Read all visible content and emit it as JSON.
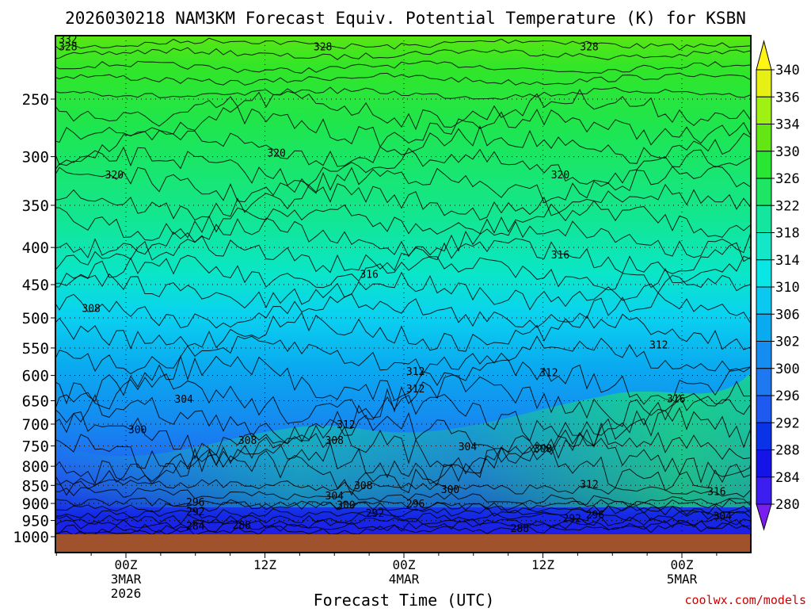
{
  "chart_data": {
    "type": "heatmap",
    "title": "2026030218 NAM3KM Forecast Equiv. Potential Temperature (K) for KSBN",
    "xlabel": "Forecast Time (UTC)",
    "ylabel": "",
    "credit": "coolwx.com/models",
    "x_ticks": [
      {
        "time_h": 6,
        "lines": [
          "00Z",
          "3MAR",
          "2026"
        ]
      },
      {
        "time_h": 18,
        "lines": [
          "12Z"
        ]
      },
      {
        "time_h": 30,
        "lines": [
          "00Z",
          "4MAR"
        ]
      },
      {
        "time_h": 42,
        "lines": [
          "12Z"
        ]
      },
      {
        "time_h": 54,
        "lines": [
          "00Z",
          "5MAR"
        ]
      }
    ],
    "xlim_hours": [
      0,
      60
    ],
    "y_ticks": [
      250,
      300,
      350,
      400,
      450,
      500,
      550,
      600,
      650,
      700,
      750,
      800,
      850,
      900,
      950,
      1000
    ],
    "ylim_hpa": [
      1000,
      200
    ],
    "y_scale": "log",
    "colorbar_levels": [
      280,
      284,
      288,
      292,
      296,
      300,
      302,
      306,
      310,
      314,
      318,
      322,
      326,
      330,
      334,
      336,
      340
    ],
    "colorbar_colors": [
      "#7a1ef0",
      "#3c1ef0",
      "#1414e6",
      "#0a32e6",
      "#1e5af0",
      "#1e78f0",
      "#148cf0",
      "#0aaaf0",
      "#0ac8f0",
      "#0ae6e6",
      "#14e6c8",
      "#14e6a0",
      "#1ee664",
      "#28e632",
      "#64e614",
      "#a0f014",
      "#e6f014",
      "#fff514"
    ],
    "ground_color": "#a0522d",
    "contour_labels": [
      {
        "text": "332",
        "t": 1.0,
        "p": 207
      },
      {
        "text": "328",
        "t": 1.0,
        "p": 212
      },
      {
        "text": "328",
        "t": 23.0,
        "p": 212
      },
      {
        "text": "328",
        "t": 46.0,
        "p": 212
      },
      {
        "text": "320",
        "t": 5.0,
        "p": 318
      },
      {
        "text": "320",
        "t": 19.0,
        "p": 297
      },
      {
        "text": "320",
        "t": 43.5,
        "p": 318
      },
      {
        "text": "316",
        "t": 27.0,
        "p": 436
      },
      {
        "text": "316",
        "t": 43.5,
        "p": 410
      },
      {
        "text": "308",
        "t": 3.0,
        "p": 486
      },
      {
        "text": "312",
        "t": 31.0,
        "p": 593
      },
      {
        "text": "312",
        "t": 31.0,
        "p": 627
      },
      {
        "text": "312",
        "t": 42.5,
        "p": 595
      },
      {
        "text": "312",
        "t": 52.0,
        "p": 545
      },
      {
        "text": "304",
        "t": 11.0,
        "p": 648
      },
      {
        "text": "316",
        "t": 53.5,
        "p": 647
      },
      {
        "text": "312",
        "t": 25.0,
        "p": 702
      },
      {
        "text": "300",
        "t": 7.0,
        "p": 713
      },
      {
        "text": "308",
        "t": 16.5,
        "p": 738
      },
      {
        "text": "308",
        "t": 24.0,
        "p": 738
      },
      {
        "text": "304",
        "t": 35.5,
        "p": 753
      },
      {
        "text": "308",
        "t": 42.0,
        "p": 758
      },
      {
        "text": "308",
        "t": 26.5,
        "p": 852
      },
      {
        "text": "312",
        "t": 46.0,
        "p": 848
      },
      {
        "text": "300",
        "t": 34.0,
        "p": 862
      },
      {
        "text": "304",
        "t": 24.0,
        "p": 880
      },
      {
        "text": "316",
        "t": 57.0,
        "p": 868
      },
      {
        "text": "296",
        "t": 12.0,
        "p": 898
      },
      {
        "text": "300",
        "t": 25.0,
        "p": 905
      },
      {
        "text": "296",
        "t": 31.0,
        "p": 902
      },
      {
        "text": "292",
        "t": 12.0,
        "p": 925
      },
      {
        "text": "292",
        "t": 27.5,
        "p": 930
      },
      {
        "text": "296",
        "t": 46.5,
        "p": 935
      },
      {
        "text": "292",
        "t": 44.5,
        "p": 945
      },
      {
        "text": "304",
        "t": 57.5,
        "p": 938
      },
      {
        "text": "284",
        "t": 12.0,
        "p": 968
      },
      {
        "text": "288",
        "t": 16.0,
        "p": 965
      },
      {
        "text": "288",
        "t": 40.0,
        "p": 975
      }
    ]
  }
}
